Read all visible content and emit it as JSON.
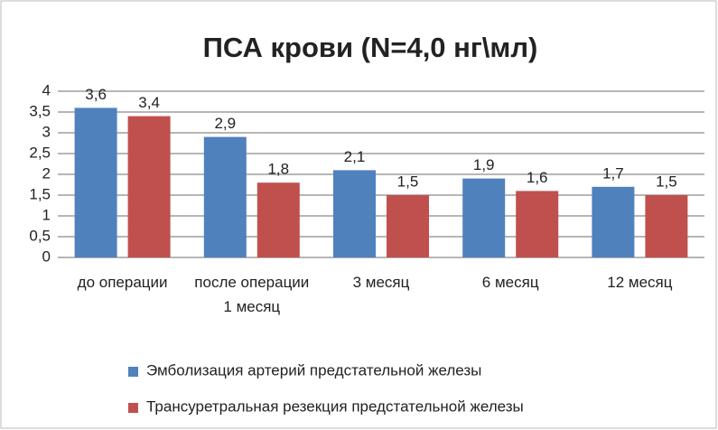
{
  "chart_data": {
    "type": "bar",
    "title": "ПСА крови (N=4,0 нг\\мл)",
    "categories": [
      "до операции",
      "после операции 1 месяц",
      "3 месяц",
      "6 месяц",
      "12 месяц"
    ],
    "series": [
      {
        "name": "Эмболизация артерий предстательной железы",
        "color": "#4f81bd",
        "values": [
          3.6,
          2.9,
          2.1,
          1.9,
          1.7
        ],
        "value_labels": [
          "3,6",
          "2,9",
          "2,1",
          "1,9",
          "1,7"
        ]
      },
      {
        "name": "Трансуретральная резекция предстательной железы",
        "color": "#c0504d",
        "values": [
          3.4,
          1.8,
          1.5,
          1.6,
          1.5
        ],
        "value_labels": [
          "3,4",
          "1,8",
          "1,5",
          "1,6",
          "1,5"
        ]
      }
    ],
    "ylim": [
      0,
      4
    ],
    "yticks": [
      0,
      {
        "value": 0.5,
        "label": "0,5"
      },
      1,
      {
        "value": 1.5,
        "label": "1,5"
      },
      2,
      {
        "value": 2.5,
        "label": "2,5"
      },
      3,
      {
        "value": 3.5,
        "label": "3,5"
      },
      4
    ],
    "grid": true,
    "legend": "bottom"
  }
}
